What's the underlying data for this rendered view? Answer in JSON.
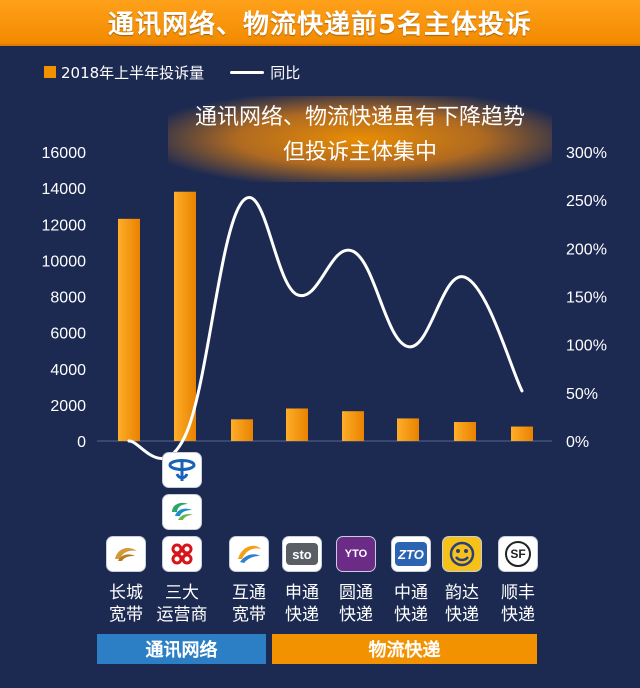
{
  "title": "通讯网络、物流快递前5名主体投诉",
  "legend": {
    "bar_label": "2018年上半年投诉量",
    "line_label": "同比"
  },
  "callout": {
    "line1": "通讯网络、物流快递虽有下降趋势",
    "line2": "但投诉主体集中"
  },
  "colors": {
    "bar": "#f39200",
    "line": "#ffffff",
    "background": "#1c2a52",
    "group_telecom": "#2c7fc5",
    "group_logistics": "#f39200"
  },
  "chart_data": {
    "type": "bar",
    "categories": [
      "长城宽带",
      "三大运营商",
      "互通宽带",
      "申通快递",
      "圆通快递",
      "中通快递",
      "韵达快递",
      "顺丰快递"
    ],
    "category_lines": [
      [
        "长城",
        "宽带"
      ],
      [
        "三大",
        "运营商"
      ],
      [
        "互通",
        "宽带"
      ],
      [
        "申通",
        "快递"
      ],
      [
        "圆通",
        "快递"
      ],
      [
        "中通",
        "快递"
      ],
      [
        "韵达",
        "快递"
      ],
      [
        "顺丰",
        "快递"
      ]
    ],
    "series": [
      {
        "name": "2018年上半年投诉量",
        "type": "bar",
        "axis": "left",
        "values": [
          12300,
          13800,
          1200,
          1800,
          1650,
          1250,
          1050,
          800
        ]
      },
      {
        "name": "同比",
        "type": "line",
        "axis": "right",
        "values": [
          0,
          5,
          248,
          152,
          197,
          98,
          170,
          52
        ],
        "unit": "%"
      }
    ],
    "left_axis": {
      "ticks": [
        0,
        2000,
        4000,
        6000,
        8000,
        10000,
        12000,
        14000,
        16000
      ],
      "range": [
        0,
        16000
      ]
    },
    "right_axis": {
      "ticks": [
        "0%",
        "50%",
        "100%",
        "150%",
        "200%",
        "250%",
        "300%"
      ],
      "range": [
        0,
        300
      ]
    },
    "grid": false,
    "legend_position": "top-left"
  },
  "logos": [
    "great-wall-broadband-logo",
    "china-telecom-logo",
    "china-mobile-logo",
    "china-unicom-logo",
    "hutong-broadband-logo",
    "sto-express-logo",
    "yto-express-logo",
    "zto-express-logo",
    "yunda-express-logo",
    "sf-express-logo"
  ],
  "logo_text": {
    "sto": "sto",
    "yto": "YTO",
    "zto": "ZTO",
    "sf": "SF"
  },
  "groups": {
    "telecom": "通讯网络",
    "logistics": "物流快递"
  }
}
